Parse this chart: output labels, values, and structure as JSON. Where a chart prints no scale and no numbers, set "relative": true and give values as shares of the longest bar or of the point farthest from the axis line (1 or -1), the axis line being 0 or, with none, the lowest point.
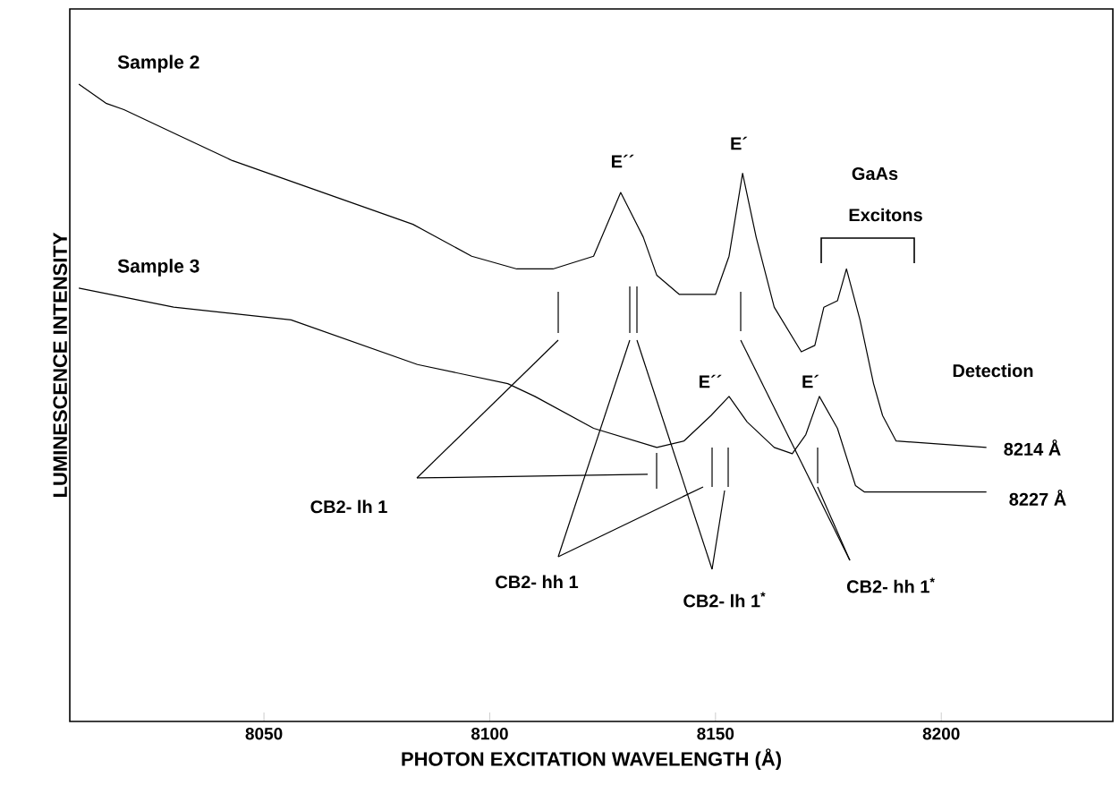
{
  "chart_data": {
    "type": "line",
    "relative": true,
    "xlabel": "PHOTON EXCITATION WAVELENGTH (Å)",
    "ylabel": "LUMINESCENCE INTENSITY",
    "xlim": [
      8007,
      8238
    ],
    "xticks": [
      8050,
      8100,
      8150,
      8200
    ],
    "tick_labels": "x",
    "grid": false,
    "series": [
      {
        "name": "Sample 2",
        "color": "#000000",
        "x": [
          8009,
          8015,
          8019,
          8031,
          8043,
          8055,
          8067,
          8083,
          8096,
          8106,
          8114,
          8123,
          8129,
          8134,
          8137,
          8142,
          8150,
          8153,
          8156,
          8159,
          8163,
          8169,
          8172,
          8174,
          8177,
          8179,
          8182,
          8185,
          8187,
          8190,
          8210
        ],
        "values": [
          1.0,
          0.97,
          0.96,
          0.92,
          0.88,
          0.85,
          0.82,
          0.78,
          0.73,
          0.71,
          0.71,
          0.73,
          0.83,
          0.76,
          0.7,
          0.67,
          0.67,
          0.73,
          0.86,
          0.76,
          0.65,
          0.58,
          0.59,
          0.65,
          0.66,
          0.71,
          0.63,
          0.53,
          0.48,
          0.44,
          0.43
        ]
      },
      {
        "name": "Sample 3",
        "color": "#000000",
        "x": [
          8009,
          8030,
          8056,
          8084,
          8104,
          8110,
          8123,
          8137,
          8143,
          8149,
          8153,
          8157,
          8163,
          8167,
          8170,
          8173,
          8177,
          8181,
          8183,
          8210
        ],
        "values": [
          0.68,
          0.65,
          0.63,
          0.56,
          0.53,
          0.51,
          0.46,
          0.43,
          0.44,
          0.48,
          0.51,
          0.47,
          0.43,
          0.42,
          0.45,
          0.51,
          0.46,
          0.37,
          0.36,
          0.36
        ]
      }
    ],
    "annotations": [
      "E´´",
      "E´",
      "GaAs",
      "Excitons",
      "Detection",
      "8214 Å",
      "8227 Å",
      "E´´",
      "E´",
      "CB2- lh 1",
      "CB2- hh 1",
      "CB2- lh 1$^{*}$",
      "CB2- hh 1$^{*}$"
    ]
  }
}
